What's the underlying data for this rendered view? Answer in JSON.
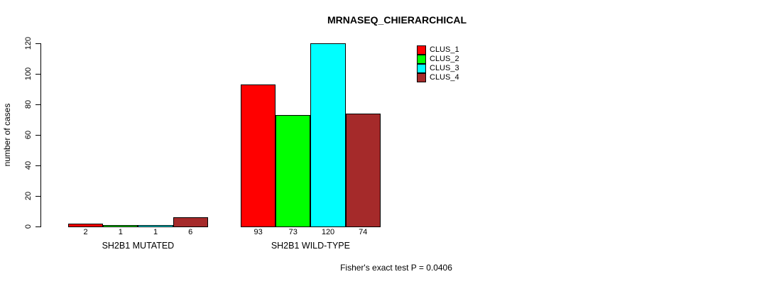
{
  "title": "MRNASEQ_CHIERARCHICAL",
  "footer": "Fisher's exact test P = 0.0406",
  "chart_data": {
    "type": "bar",
    "title": "MRNASEQ_CHIERARCHICAL",
    "xlabel": "",
    "ylabel": "number of cases",
    "ylim": [
      0,
      120
    ],
    "yticks": [
      0,
      20,
      40,
      60,
      80,
      100,
      120
    ],
    "grid": false,
    "legend_position": "top-right",
    "bar_value_labels": true,
    "categories": [
      "SH2B1 MUTATED",
      "SH2B1 WILD-TYPE"
    ],
    "groups": [
      {
        "label": "SH2B1 MUTATED",
        "values": [
          2,
          1,
          1,
          6
        ]
      },
      {
        "label": "SH2B1 WILD-TYPE",
        "values": [
          93,
          73,
          120,
          74
        ]
      }
    ],
    "series": [
      {
        "name": "CLUS_1",
        "color": "#ff0000"
      },
      {
        "name": "CLUS_2",
        "color": "#00ff00"
      },
      {
        "name": "CLUS_3",
        "color": "#00ffff"
      },
      {
        "name": "CLUS_4",
        "color": "#a52a2a"
      }
    ],
    "annotation": "Fisher's exact test P = 0.0406"
  }
}
